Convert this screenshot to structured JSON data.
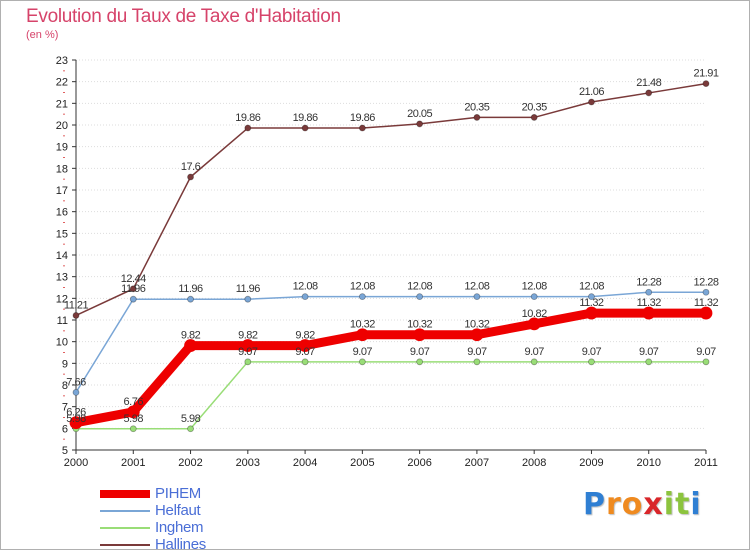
{
  "title": "Evolution du Taux de Taxe d'Habitation",
  "subtitle": "(en %)",
  "colors": {
    "title": "#d6436a",
    "legend_text": "#4a6ed6",
    "axis": "#333333",
    "grid": "#dddddd"
  },
  "logo": {
    "letters": [
      "P",
      "r",
      "o",
      "x",
      "i",
      "t",
      "i"
    ],
    "letter_colors": [
      "#2f7fd3",
      "#ef8a1f",
      "#ef8a1f",
      "#d9262a",
      "#8cc43e",
      "#8cc43e",
      "#2f7fd3"
    ]
  },
  "chart_data": {
    "type": "line",
    "title": "Evolution du Taux de Taxe d'Habitation",
    "subtitle": "(en %)",
    "x": [
      "2000",
      "2001",
      "2002",
      "2003",
      "2004",
      "2005",
      "2006",
      "2007",
      "2008",
      "2009",
      "2010",
      "2011"
    ],
    "ylim": [
      5,
      23
    ],
    "yticks": [
      5,
      6,
      7,
      8,
      9,
      10,
      11,
      12,
      13,
      14,
      15,
      16,
      17,
      18,
      19,
      20,
      21,
      22,
      23
    ],
    "grid": "horizontal dotted",
    "legend_position": "bottom-left",
    "series": [
      {
        "name": "PIHEM",
        "color": "#ee0000",
        "values": [
          6.26,
          6.76,
          9.82,
          9.82,
          9.82,
          10.32,
          10.32,
          10.32,
          10.82,
          11.32,
          11.32,
          11.32
        ],
        "labels": [
          "6.26",
          "6.76",
          "9.82",
          "9.82",
          "9.82",
          "10.32",
          "10.32",
          "10.32",
          "10.82",
          "11.32",
          "11.32",
          "11.32"
        ]
      },
      {
        "name": "Helfaut",
        "color": "#7aa6d6",
        "values": [
          7.66,
          11.96,
          11.96,
          11.96,
          12.08,
          12.08,
          12.08,
          12.08,
          12.08,
          12.08,
          12.28,
          12.28
        ],
        "labels": [
          "7.66",
          "11.96",
          "11.96",
          "11.96",
          "12.08",
          "12.08",
          "12.08",
          "12.08",
          "12.08",
          "12.08",
          "12.28",
          "12.28"
        ]
      },
      {
        "name": "Inghem",
        "color": "#99dd77",
        "values": [
          5.98,
          5.98,
          5.98,
          9.07,
          9.07,
          9.07,
          9.07,
          9.07,
          9.07,
          9.07,
          9.07,
          9.07
        ],
        "labels": [
          "5.98",
          "5.98",
          "5.98",
          "9.07",
          "9.07",
          "9.07",
          "9.07",
          "9.07",
          "9.07",
          "9.07",
          "9.07",
          "9.07"
        ]
      },
      {
        "name": "Hallines",
        "color": "#7a3a3a",
        "values": [
          11.21,
          12.44,
          17.6,
          19.86,
          19.86,
          19.86,
          20.05,
          20.35,
          20.35,
          21.06,
          21.48,
          21.91
        ],
        "labels": [
          "11.21",
          "12.44",
          "17.6",
          "19.86",
          "19.86",
          "19.86",
          "20.05",
          "20.35",
          "20.35",
          "21.06",
          "21.48",
          "21.91"
        ]
      }
    ]
  }
}
